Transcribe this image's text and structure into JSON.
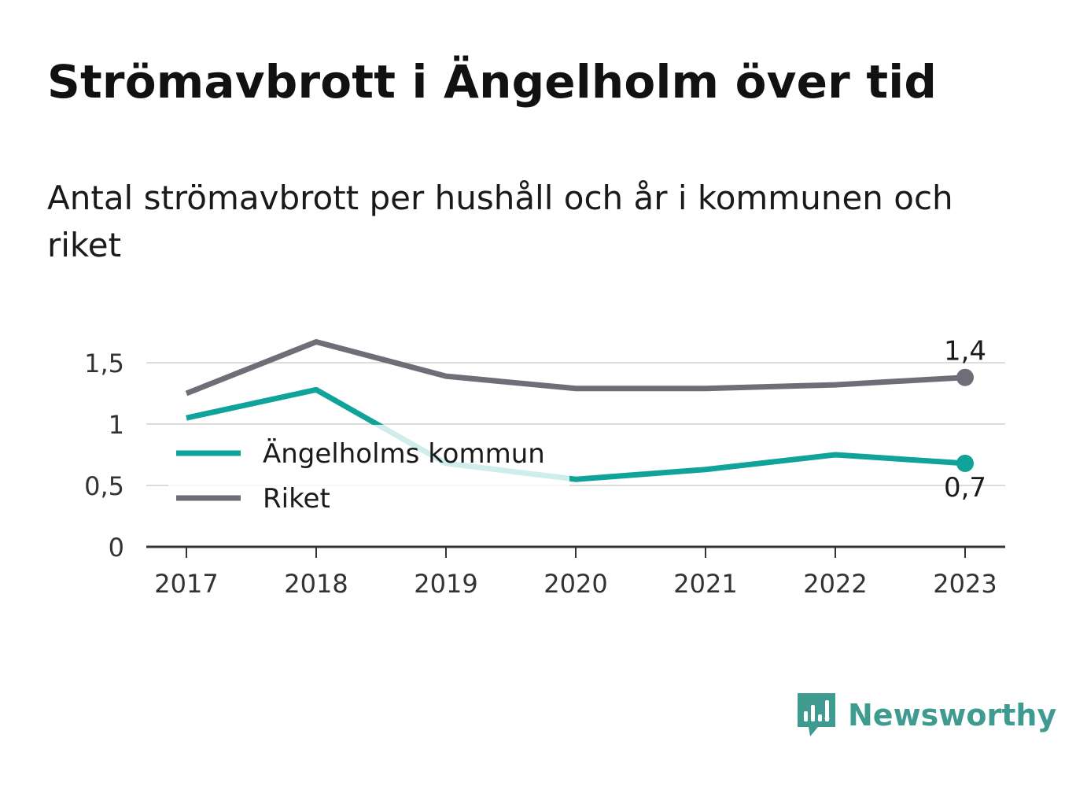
{
  "title": "Strömavbrott i Ängelholm över tid",
  "subtitle": "Antal strömavbrott per hushåll och år i kommunen och riket",
  "brand": {
    "name": "Newsworthy",
    "icon": "newsworthy-logo-icon",
    "color": "#3f9b8f"
  },
  "chart_data": {
    "type": "line",
    "x": [
      "2017",
      "2018",
      "2019",
      "2020",
      "2021",
      "2022",
      "2023"
    ],
    "ylim": [
      0,
      1.75
    ],
    "yticks": [
      {
        "value": 0,
        "label": "0"
      },
      {
        "value": 0.5,
        "label": "0,5"
      },
      {
        "value": 1,
        "label": "1"
      },
      {
        "value": 1.5,
        "label": "1,5"
      }
    ],
    "grid": true,
    "legend": "inside-left",
    "series": [
      {
        "name": "Ängelholms kommun",
        "color": "#0fa39a",
        "values": [
          1.05,
          1.28,
          0.68,
          0.55,
          0.63,
          0.75,
          0.68
        ],
        "end_label": "0,7"
      },
      {
        "name": "Riket",
        "color": "#6e6e78",
        "values": [
          1.25,
          1.67,
          1.39,
          1.29,
          1.29,
          1.32,
          1.38
        ],
        "end_label": "1,4"
      }
    ]
  }
}
